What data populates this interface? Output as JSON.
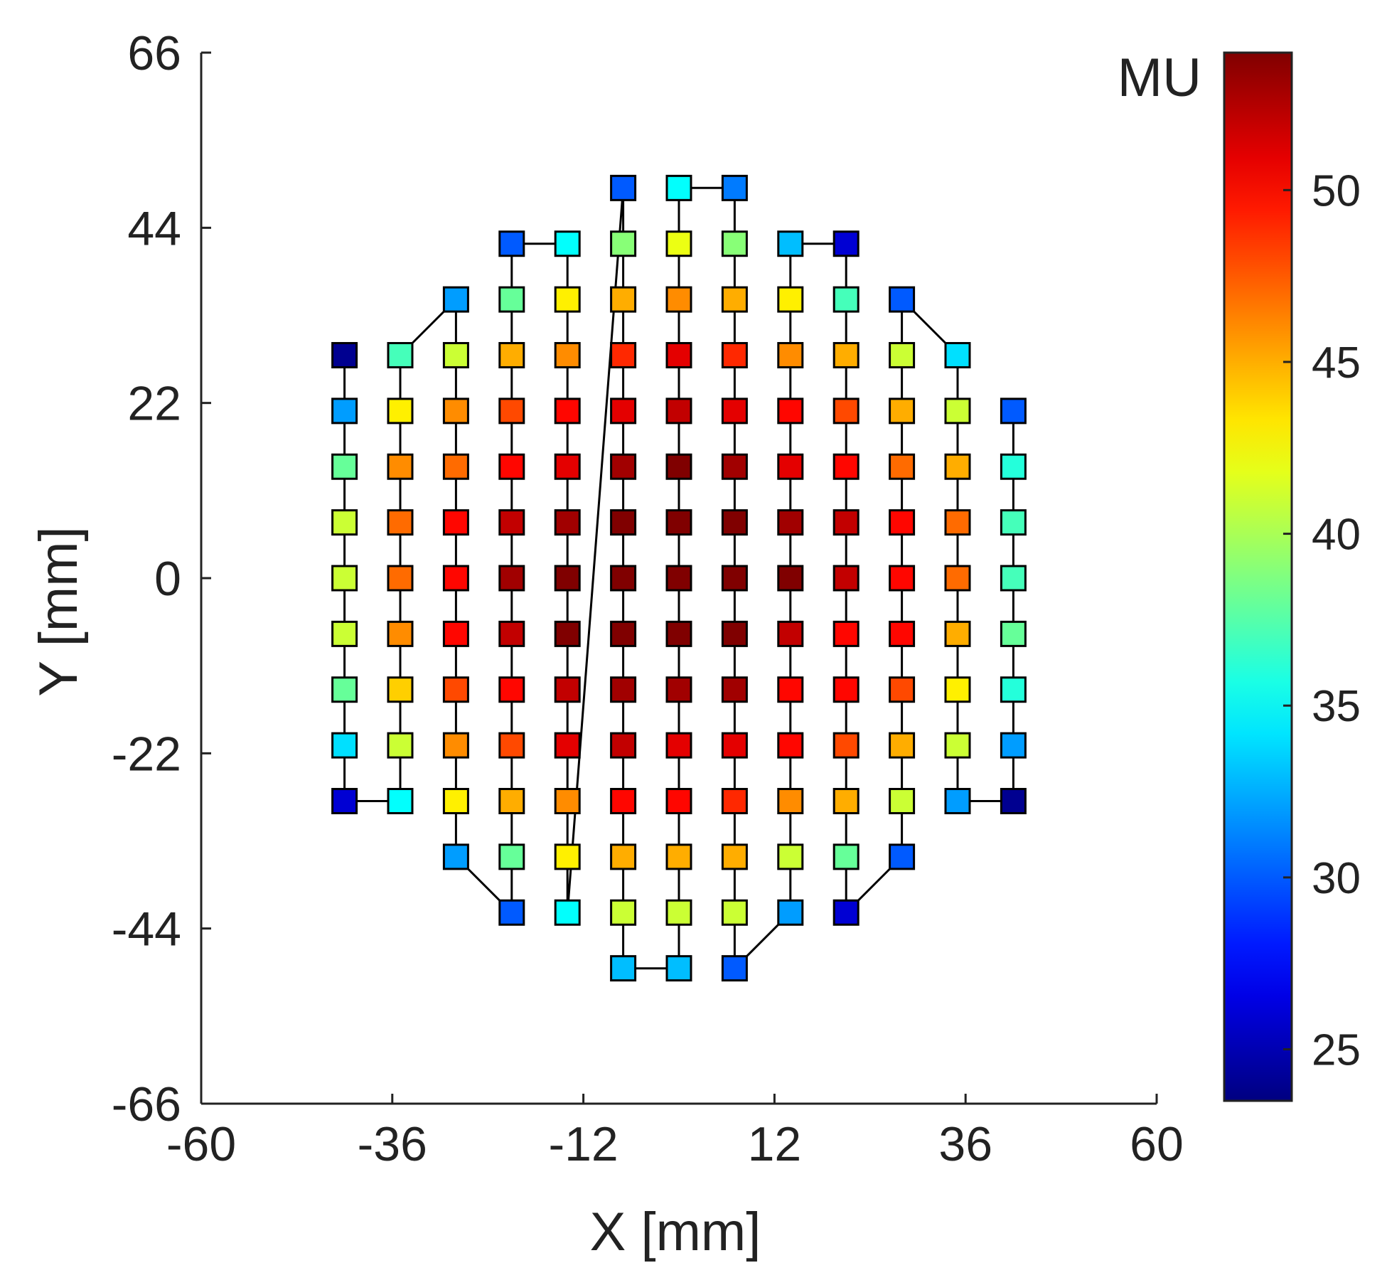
{
  "chart_data": {
    "type": "scatter",
    "title": "",
    "xlabel": "X [mm]",
    "ylabel": "Y [mm]",
    "xlim": [
      -60,
      60
    ],
    "ylim": [
      -66,
      66
    ],
    "xticks": [
      -60,
      -36,
      -12,
      12,
      36,
      60
    ],
    "yticks": [
      -66,
      -44,
      -22,
      0,
      22,
      44,
      66
    ],
    "xtick_labels": [
      "-60",
      "-36",
      "-12",
      "12",
      "36",
      "60"
    ],
    "ytick_labels": [
      "-66",
      "-44",
      "-22",
      "0",
      "22",
      "44",
      "66"
    ],
    "grid": false,
    "marker": "square",
    "path_color": "#000000",
    "colormap": "jet",
    "colorbar": {
      "title": "MU",
      "range": [
        23.5,
        54
      ],
      "ticks": [
        25,
        30,
        35,
        40,
        45,
        50
      ],
      "tick_labels": [
        "25",
        "30",
        "35",
        "40",
        "45",
        "50"
      ],
      "position": "right"
    },
    "columns": [
      {
        "x": -42,
        "ys": [
          28,
          21,
          14,
          7,
          0,
          -7,
          -14,
          -21,
          -28
        ],
        "mu": [
          24,
          32,
          38,
          41,
          41,
          41,
          38,
          34,
          26
        ]
      },
      {
        "x": -35,
        "ys": [
          -28,
          -21,
          -14,
          -7,
          0,
          7,
          14,
          21,
          28
        ],
        "mu": [
          35,
          41,
          44,
          46,
          47,
          47,
          46,
          43,
          37
        ]
      },
      {
        "x": -28,
        "ys": [
          35,
          28,
          21,
          14,
          7,
          0,
          -7,
          -14,
          -21,
          -28,
          -35
        ],
        "mu": [
          32,
          41,
          46,
          47,
          50,
          50,
          50,
          48,
          46,
          43,
          32
        ]
      },
      {
        "x": -21,
        "ys": [
          -42,
          -35,
          -28,
          -21,
          -14,
          -7,
          0,
          7,
          14,
          21,
          28,
          35,
          42
        ],
        "mu": [
          30,
          38,
          45,
          48,
          50,
          52,
          53,
          52,
          50,
          48,
          45,
          38,
          30
        ]
      },
      {
        "x": -14,
        "ys": [
          42,
          35,
          28,
          21,
          14,
          7,
          0,
          -7,
          -14,
          -21,
          -28,
          -35,
          -42
        ],
        "mu": [
          35,
          43,
          46,
          50,
          51,
          53,
          54,
          54,
          52,
          51,
          46,
          43,
          35
        ]
      },
      {
        "x": -7,
        "ys": [
          49,
          42,
          35,
          28,
          21,
          14,
          7,
          0,
          -7,
          -14,
          -21,
          -28,
          -35,
          -42,
          -49
        ],
        "mu": [
          30,
          39,
          45,
          49,
          51,
          53,
          54,
          54,
          54,
          53,
          52,
          50,
          45,
          41,
          33
        ]
      },
      {
        "x": 0,
        "ys": [
          -49,
          -42,
          -35,
          -28,
          -21,
          -14,
          -7,
          0,
          7,
          14,
          21,
          28,
          35,
          42,
          49
        ],
        "mu": [
          33,
          41,
          45,
          50,
          51,
          53,
          54,
          54,
          54,
          54,
          52,
          51,
          46,
          42,
          35
        ]
      },
      {
        "x": 7,
        "ys": [
          49,
          42,
          35,
          28,
          21,
          14,
          7,
          0,
          -7,
          -14,
          -21,
          -28,
          -35,
          -42,
          -49
        ],
        "mu": [
          31,
          39,
          45,
          49,
          51,
          53,
          54,
          54,
          54,
          53,
          51,
          49,
          45,
          41,
          30
        ]
      },
      {
        "x": 14,
        "ys": [
          -42,
          -35,
          -28,
          -21,
          -14,
          -7,
          0,
          7,
          14,
          21,
          28,
          35,
          42
        ],
        "mu": [
          32,
          41,
          46,
          50,
          50,
          52,
          54,
          53,
          51,
          50,
          46,
          43,
          33
        ]
      },
      {
        "x": 21,
        "ys": [
          42,
          35,
          28,
          21,
          14,
          7,
          0,
          -7,
          -14,
          -21,
          -28,
          -35,
          -42
        ],
        "mu": [
          26,
          37,
          45,
          48,
          50,
          52,
          52,
          50,
          50,
          48,
          45,
          38,
          26
        ]
      },
      {
        "x": 28,
        "ys": [
          -35,
          -28,
          -21,
          -14,
          -7,
          0,
          7,
          14,
          21,
          28,
          35
        ],
        "mu": [
          30,
          41,
          45,
          48,
          50,
          50,
          50,
          47,
          45,
          41,
          30
        ]
      },
      {
        "x": 35,
        "ys": [
          28,
          21,
          14,
          7,
          0,
          -7,
          -14,
          -21,
          -28
        ],
        "mu": [
          34,
          41,
          45,
          47,
          47,
          45,
          43,
          41,
          32
        ]
      },
      {
        "x": 42,
        "ys": [
          -28,
          -21,
          -14,
          -7,
          0,
          7,
          14,
          21
        ],
        "mu": [
          24,
          32,
          36,
          38,
          37,
          37,
          36,
          30
        ]
      }
    ]
  }
}
